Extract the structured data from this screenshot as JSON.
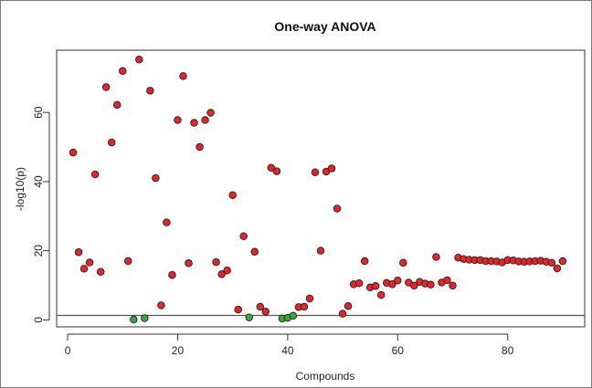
{
  "chart_data": {
    "type": "scatter",
    "title": "One-way ANOVA",
    "xlabel": "Compounds",
    "ylabel": "-log10(p)",
    "xlim": [
      -2,
      94
    ],
    "ylim": [
      -2,
      78
    ],
    "x_ticks": [
      0,
      20,
      40,
      60,
      80
    ],
    "y_ticks": [
      0,
      20,
      40,
      60
    ],
    "threshold_y": 1.3,
    "colors": {
      "significant": "#e8242a",
      "not_significant": "#3aa83a",
      "threshold": "#555555",
      "edge": "#222222"
    },
    "points": [
      {
        "x": 1,
        "y": 48.4,
        "s": true
      },
      {
        "x": 2,
        "y": 19.6,
        "s": true
      },
      {
        "x": 3,
        "y": 14.8,
        "s": true
      },
      {
        "x": 4,
        "y": 16.6,
        "s": true
      },
      {
        "x": 5,
        "y": 42.1,
        "s": true
      },
      {
        "x": 6,
        "y": 13.9,
        "s": true
      },
      {
        "x": 7,
        "y": 67.3,
        "s": true
      },
      {
        "x": 8,
        "y": 51.3,
        "s": true
      },
      {
        "x": 9,
        "y": 62.2,
        "s": true
      },
      {
        "x": 10,
        "y": 72.0,
        "s": true
      },
      {
        "x": 11,
        "y": 17.0,
        "s": true
      },
      {
        "x": 12,
        "y": 0.1,
        "s": false
      },
      {
        "x": 13,
        "y": 75.3,
        "s": true
      },
      {
        "x": 14,
        "y": 0.5,
        "s": false
      },
      {
        "x": 15,
        "y": 66.3,
        "s": true
      },
      {
        "x": 16,
        "y": 41.0,
        "s": true
      },
      {
        "x": 17,
        "y": 4.2,
        "s": true
      },
      {
        "x": 18,
        "y": 28.2,
        "s": true
      },
      {
        "x": 19,
        "y": 13.0,
        "s": true
      },
      {
        "x": 20,
        "y": 57.8,
        "s": true
      },
      {
        "x": 21,
        "y": 70.5,
        "s": true
      },
      {
        "x": 22,
        "y": 16.4,
        "s": true
      },
      {
        "x": 23,
        "y": 57.0,
        "s": true
      },
      {
        "x": 24,
        "y": 50.0,
        "s": true
      },
      {
        "x": 25,
        "y": 57.8,
        "s": true
      },
      {
        "x": 26,
        "y": 59.9,
        "s": true
      },
      {
        "x": 27,
        "y": 16.7,
        "s": true
      },
      {
        "x": 28,
        "y": 13.2,
        "s": true
      },
      {
        "x": 29,
        "y": 14.3,
        "s": true
      },
      {
        "x": 30,
        "y": 36.1,
        "s": true
      },
      {
        "x": 31,
        "y": 3.0,
        "s": true
      },
      {
        "x": 32,
        "y": 24.2,
        "s": true
      },
      {
        "x": 33,
        "y": 0.7,
        "s": false
      },
      {
        "x": 34,
        "y": 19.7,
        "s": true
      },
      {
        "x": 35,
        "y": 3.8,
        "s": true
      },
      {
        "x": 36,
        "y": 2.4,
        "s": true
      },
      {
        "x": 37,
        "y": 44.0,
        "s": true
      },
      {
        "x": 38,
        "y": 43.0,
        "s": true
      },
      {
        "x": 39,
        "y": 0.4,
        "s": false
      },
      {
        "x": 40,
        "y": 0.6,
        "s": false
      },
      {
        "x": 41,
        "y": 1.2,
        "s": false
      },
      {
        "x": 42,
        "y": 3.7,
        "s": true
      },
      {
        "x": 43,
        "y": 3.8,
        "s": true
      },
      {
        "x": 44,
        "y": 6.2,
        "s": true
      },
      {
        "x": 45,
        "y": 42.7,
        "s": true
      },
      {
        "x": 46,
        "y": 20.0,
        "s": true
      },
      {
        "x": 47,
        "y": 42.9,
        "s": true
      },
      {
        "x": 48,
        "y": 43.8,
        "s": true
      },
      {
        "x": 49,
        "y": 32.2,
        "s": true
      },
      {
        "x": 50,
        "y": 1.8,
        "s": true
      },
      {
        "x": 51,
        "y": 4.0,
        "s": true
      },
      {
        "x": 52,
        "y": 10.3,
        "s": true
      },
      {
        "x": 53,
        "y": 10.6,
        "s": true
      },
      {
        "x": 54,
        "y": 17.0,
        "s": true
      },
      {
        "x": 55,
        "y": 9.4,
        "s": true
      },
      {
        "x": 56,
        "y": 9.8,
        "s": true
      },
      {
        "x": 57,
        "y": 7.2,
        "s": true
      },
      {
        "x": 58,
        "y": 10.7,
        "s": true
      },
      {
        "x": 59,
        "y": 10.3,
        "s": true
      },
      {
        "x": 60,
        "y": 11.4,
        "s": true
      },
      {
        "x": 61,
        "y": 16.5,
        "s": true
      },
      {
        "x": 62,
        "y": 10.8,
        "s": true
      },
      {
        "x": 63,
        "y": 9.9,
        "s": true
      },
      {
        "x": 64,
        "y": 11.0,
        "s": true
      },
      {
        "x": 65,
        "y": 10.5,
        "s": true
      },
      {
        "x": 66,
        "y": 10.2,
        "s": true
      },
      {
        "x": 67,
        "y": 18.2,
        "s": true
      },
      {
        "x": 68,
        "y": 10.8,
        "s": true
      },
      {
        "x": 69,
        "y": 11.5,
        "s": true
      },
      {
        "x": 70,
        "y": 9.9,
        "s": true
      },
      {
        "x": 71,
        "y": 18.0,
        "s": true
      },
      {
        "x": 72,
        "y": 17.6,
        "s": true
      },
      {
        "x": 73,
        "y": 17.4,
        "s": true
      },
      {
        "x": 74,
        "y": 17.3,
        "s": true
      },
      {
        "x": 75,
        "y": 17.3,
        "s": true
      },
      {
        "x": 76,
        "y": 17.0,
        "s": true
      },
      {
        "x": 77,
        "y": 17.0,
        "s": true
      },
      {
        "x": 78,
        "y": 16.9,
        "s": true
      },
      {
        "x": 79,
        "y": 16.6,
        "s": true
      },
      {
        "x": 80,
        "y": 17.3,
        "s": true
      },
      {
        "x": 81,
        "y": 17.2,
        "s": true
      },
      {
        "x": 82,
        "y": 16.9,
        "s": true
      },
      {
        "x": 83,
        "y": 16.8,
        "s": true
      },
      {
        "x": 84,
        "y": 16.9,
        "s": true
      },
      {
        "x": 85,
        "y": 17.0,
        "s": true
      },
      {
        "x": 86,
        "y": 17.1,
        "s": true
      },
      {
        "x": 87,
        "y": 16.8,
        "s": true
      },
      {
        "x": 88,
        "y": 16.5,
        "s": true
      },
      {
        "x": 89,
        "y": 14.9,
        "s": true
      },
      {
        "x": 90,
        "y": 17.0,
        "s": true
      }
    ]
  }
}
